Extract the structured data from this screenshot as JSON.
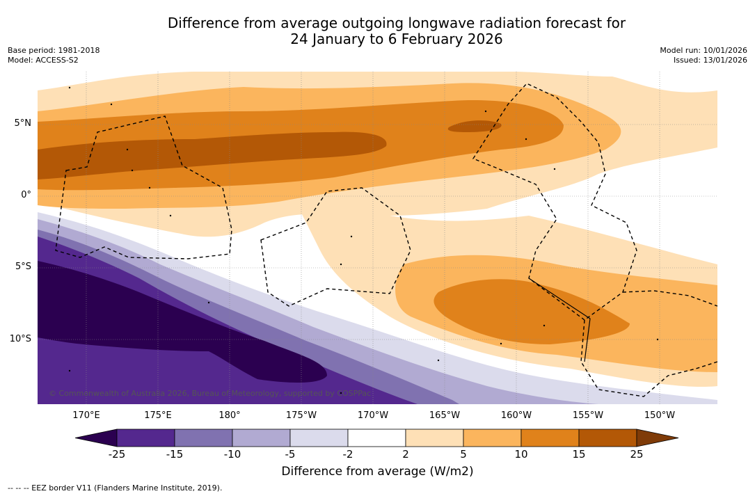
{
  "title": {
    "line1": "Difference from average outgoing longwave radiation forecast for",
    "line2": "24 January to 6 February 2026"
  },
  "meta": {
    "base_period": "Base period: 1981-2018",
    "model": "Model: ACCESS-S2",
    "model_run": "Model run: 10/01/2026",
    "issued": "Issued: 13/01/2026"
  },
  "axes": {
    "lat_labels": [
      "5°N",
      "0°",
      "5°S",
      "10°S"
    ],
    "lon_labels": [
      "170°E",
      "175°E",
      "180°",
      "175°W",
      "170°W",
      "165°W",
      "160°W",
      "155°W",
      "150°W"
    ]
  },
  "copyright": "© Commonwealth of Australia 2026, Bureau of Meteorology, supported by COSPPac",
  "colorbar": {
    "title": "Difference from average (W/m2)",
    "ticks": [
      "-25",
      "-15",
      "-10",
      "-5",
      "-2",
      "2",
      "5",
      "10",
      "15",
      "25"
    ],
    "colors": [
      "#2b0050",
      "#54288e",
      "#8072b0",
      "#b1aad2",
      "#dbdbec",
      "#ffffff",
      "#fee0b6",
      "#fbb55d",
      "#e0821b",
      "#b35806",
      "#7f3b08"
    ]
  },
  "footer": "-- -- -- EEZ border V11 (Flanders Marine Institute, 2019)."
}
